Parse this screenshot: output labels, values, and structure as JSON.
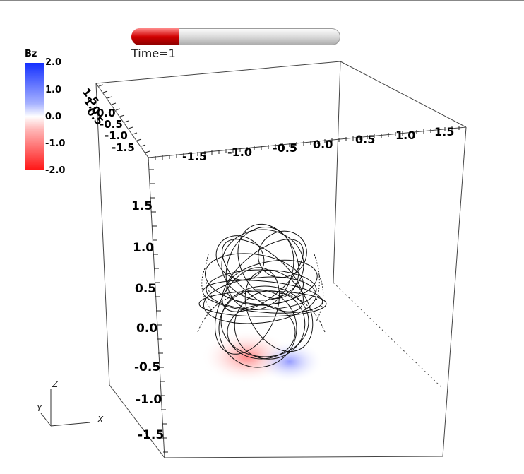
{
  "time_slider": {
    "label": "Time=1",
    "progress": 0.226,
    "fill_color": "#d10000"
  },
  "colorbar": {
    "title": "Bz",
    "labels": [
      "2.0",
      "1.0",
      "0.0",
      "-1.0",
      "-2.0"
    ],
    "max_color": "#1430ff",
    "min_color": "#ff1515"
  },
  "axes": {
    "vertical_ticks": [
      "1.5",
      "1.0",
      "0.5",
      "0.0",
      "-0.5",
      "-1.0",
      "-1.5"
    ],
    "top_front_ticks": [
      "-1.5",
      "-1.0",
      "-0.5",
      "0.0",
      "0.5",
      "1.0",
      "1.5"
    ],
    "depth_ticks": [
      "1.5",
      "1.0",
      "0.5",
      "0.0",
      "-0.5",
      "-1.0",
      "-1.5"
    ]
  },
  "orientation_triad": {
    "z": "Z",
    "y": "Y",
    "x": "X"
  }
}
